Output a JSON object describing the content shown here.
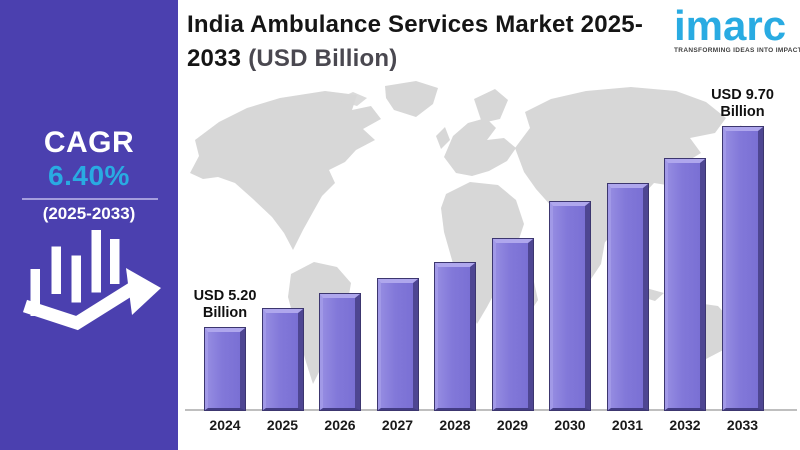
{
  "sidebar": {
    "cagr_label": "CAGR",
    "cagr_value": "6.40%",
    "cagr_period": "(2025-2033)",
    "bg_color": "#4b40af",
    "accent_color": "#29abe2"
  },
  "header": {
    "title_line1": "India Ambulance Services Market 2025-",
    "title_line2_prefix": "2033",
    "title_suffix": "(USD Billion)"
  },
  "logo": {
    "brand": "imarc",
    "tagline": "TRANSFORMING IDEAS INTO IMPACT",
    "brand_color": "#29abe2"
  },
  "chart_data": {
    "type": "bar",
    "title": "India Ambulance Services Market 2025-2033 (USD Billion)",
    "unit": "USD Billion",
    "categories": [
      "2024",
      "2025",
      "2026",
      "2027",
      "2028",
      "2029",
      "2030",
      "2031",
      "2032",
      "2033"
    ],
    "values": [
      5.2,
      5.63,
      5.97,
      6.3,
      6.66,
      7.2,
      8.03,
      8.43,
      8.99,
      9.7
    ],
    "annotations": [
      {
        "category": "2024",
        "line1": "USD 5.20",
        "line2": "Billion"
      },
      {
        "category": "2033",
        "line1": "USD 9.70",
        "line2": "Billion"
      }
    ],
    "bar_color": "#8278d9",
    "value_axis_min": 3.37,
    "gridlines": false,
    "legend": "none",
    "background": "world-map-silhouette"
  }
}
